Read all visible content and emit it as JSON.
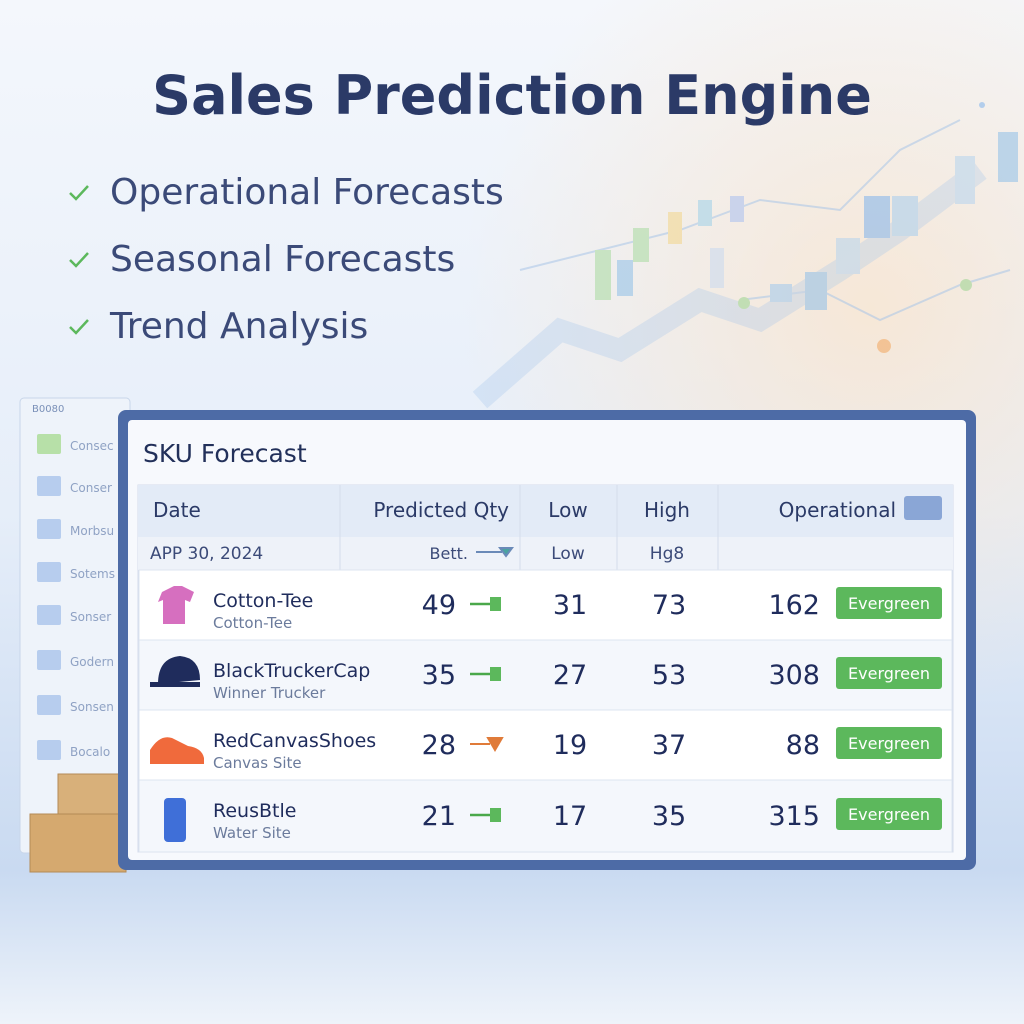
{
  "header": {
    "title": "Sales Prediction Engine",
    "features": [
      "Operational Forecasts",
      "Seasonal Forecasts",
      "Trend Analysis"
    ]
  },
  "sidebar": {
    "header": "B0080",
    "items": [
      "Consec",
      "Conser",
      "Morbsu",
      "Sotems",
      "Sonser",
      "Godern",
      "Sonsen",
      "Bocalo"
    ]
  },
  "panel": {
    "title": "SKU Forecast",
    "columns": [
      "Date",
      "Predicted Qty",
      "Low",
      "High",
      "Operational"
    ],
    "subheader": {
      "date": "APP 30, 2024",
      "predicted": "Bett.",
      "low": "Low",
      "high": "Hg8"
    },
    "rows": [
      {
        "name": "Cotton-Tee",
        "subtitle": "Cotton-Tee",
        "predicted": 49,
        "low": 31,
        "high": 73,
        "operational": 162,
        "tag": "Evergreen",
        "trend": "steady"
      },
      {
        "name": "BlackTruckerCap",
        "subtitle": "Winner Trucker",
        "predicted": 35,
        "low": 27,
        "high": 53,
        "operational": 308,
        "tag": "Evergreen",
        "trend": "steady"
      },
      {
        "name": "RedCanvasShoes",
        "subtitle": "Canvas Site",
        "predicted": 28,
        "low": 19,
        "high": 37,
        "operational": 88,
        "tag": "Evergreen",
        "trend": "down"
      },
      {
        "name": "ReusBtle",
        "subtitle": "Water Site",
        "predicted": 21,
        "low": 17,
        "high": 35,
        "operational": 315,
        "tag": "Evergreen",
        "trend": "steady"
      }
    ]
  }
}
